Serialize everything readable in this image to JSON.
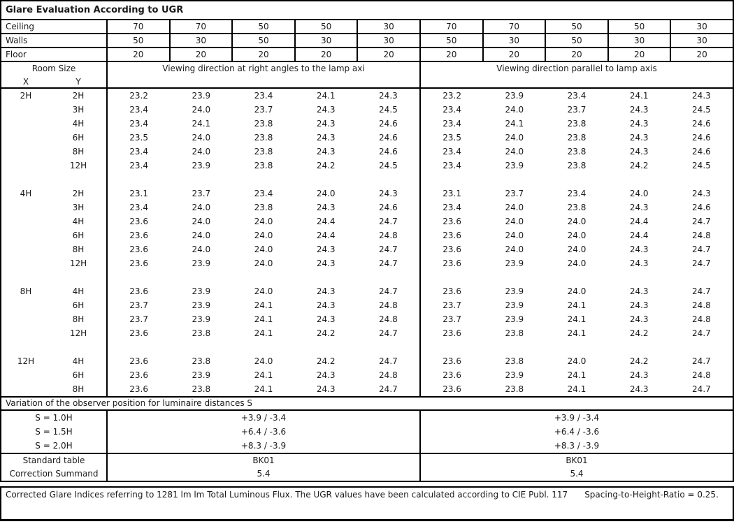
{
  "title": "Glare Evaluation According to UGR",
  "colors": {
    "background": "#ffffff",
    "text": "#1a1a1a",
    "border": "#000000"
  },
  "params": {
    "rows": [
      {
        "label": "Ceiling",
        "values": [
          "70",
          "70",
          "50",
          "50",
          "30",
          "70",
          "70",
          "50",
          "50",
          "30"
        ]
      },
      {
        "label": "Walls",
        "values": [
          "50",
          "30",
          "50",
          "30",
          "30",
          "50",
          "30",
          "50",
          "30",
          "30"
        ]
      },
      {
        "label": "Floor",
        "values": [
          "20",
          "20",
          "20",
          "20",
          "20",
          "20",
          "20",
          "20",
          "20",
          "20"
        ]
      }
    ]
  },
  "header": {
    "room_size": "Room Size",
    "x": "X",
    "y": "Y",
    "right_angle": "Viewing direction at right angles to the lamp axi",
    "parallel": "Viewing direction parallel to lamp axis"
  },
  "blocks": [
    {
      "x": "2H",
      "rows": [
        {
          "y": "2H",
          "right_angle": [
            "23.2",
            "23.9",
            "23.4",
            "24.1",
            "24.3"
          ],
          "parallel": [
            "23.2",
            "23.9",
            "23.4",
            "24.1",
            "24.3"
          ]
        },
        {
          "y": "3H",
          "right_angle": [
            "23.4",
            "24.0",
            "23.7",
            "24.3",
            "24.5"
          ],
          "parallel": [
            "23.4",
            "24.0",
            "23.7",
            "24.3",
            "24.5"
          ]
        },
        {
          "y": "4H",
          "right_angle": [
            "23.4",
            "24.1",
            "23.8",
            "24.3",
            "24.6"
          ],
          "parallel": [
            "23.4",
            "24.1",
            "23.8",
            "24.3",
            "24.6"
          ]
        },
        {
          "y": "6H",
          "right_angle": [
            "23.5",
            "24.0",
            "23.8",
            "24.3",
            "24.6"
          ],
          "parallel": [
            "23.5",
            "24.0",
            "23.8",
            "24.3",
            "24.6"
          ]
        },
        {
          "y": "8H",
          "right_angle": [
            "23.4",
            "24.0",
            "23.8",
            "24.3",
            "24.6"
          ],
          "parallel": [
            "23.4",
            "24.0",
            "23.8",
            "24.3",
            "24.6"
          ]
        },
        {
          "y": "12H",
          "right_angle": [
            "23.4",
            "23.9",
            "23.8",
            "24.2",
            "24.5"
          ],
          "parallel": [
            "23.4",
            "23.9",
            "23.8",
            "24.2",
            "24.5"
          ]
        }
      ]
    },
    {
      "x": "4H",
      "rows": [
        {
          "y": "2H",
          "right_angle": [
            "23.1",
            "23.7",
            "23.4",
            "24.0",
            "24.3"
          ],
          "parallel": [
            "23.1",
            "23.7",
            "23.4",
            "24.0",
            "24.3"
          ]
        },
        {
          "y": "3H",
          "right_angle": [
            "23.4",
            "24.0",
            "23.8",
            "24.3",
            "24.6"
          ],
          "parallel": [
            "23.4",
            "24.0",
            "23.8",
            "24.3",
            "24.6"
          ]
        },
        {
          "y": "4H",
          "right_angle": [
            "23.6",
            "24.0",
            "24.0",
            "24.4",
            "24.7"
          ],
          "parallel": [
            "23.6",
            "24.0",
            "24.0",
            "24.4",
            "24.7"
          ]
        },
        {
          "y": "6H",
          "right_angle": [
            "23.6",
            "24.0",
            "24.0",
            "24.4",
            "24.8"
          ],
          "parallel": [
            "23.6",
            "24.0",
            "24.0",
            "24.4",
            "24.8"
          ]
        },
        {
          "y": "8H",
          "right_angle": [
            "23.6",
            "24.0",
            "24.0",
            "24.3",
            "24.7"
          ],
          "parallel": [
            "23.6",
            "24.0",
            "24.0",
            "24.3",
            "24.7"
          ]
        },
        {
          "y": "12H",
          "right_angle": [
            "23.6",
            "23.9",
            "24.0",
            "24.3",
            "24.7"
          ],
          "parallel": [
            "23.6",
            "23.9",
            "24.0",
            "24.3",
            "24.7"
          ]
        }
      ]
    },
    {
      "x": "8H",
      "rows": [
        {
          "y": "4H",
          "right_angle": [
            "23.6",
            "23.9",
            "24.0",
            "24.3",
            "24.7"
          ],
          "parallel": [
            "23.6",
            "23.9",
            "24.0",
            "24.3",
            "24.7"
          ]
        },
        {
          "y": "6H",
          "right_angle": [
            "23.7",
            "23.9",
            "24.1",
            "24.3",
            "24.8"
          ],
          "parallel": [
            "23.7",
            "23.9",
            "24.1",
            "24.3",
            "24.8"
          ]
        },
        {
          "y": "8H",
          "right_angle": [
            "23.7",
            "23.9",
            "24.1",
            "24.3",
            "24.8"
          ],
          "parallel": [
            "23.7",
            "23.9",
            "24.1",
            "24.3",
            "24.8"
          ]
        },
        {
          "y": "12H",
          "right_angle": [
            "23.6",
            "23.8",
            "24.1",
            "24.2",
            "24.7"
          ],
          "parallel": [
            "23.6",
            "23.8",
            "24.1",
            "24.2",
            "24.7"
          ]
        }
      ]
    },
    {
      "x": "12H",
      "rows": [
        {
          "y": "4H",
          "right_angle": [
            "23.6",
            "23.8",
            "24.0",
            "24.2",
            "24.7"
          ],
          "parallel": [
            "23.6",
            "23.8",
            "24.0",
            "24.2",
            "24.7"
          ]
        },
        {
          "y": "6H",
          "right_angle": [
            "23.6",
            "23.9",
            "24.1",
            "24.3",
            "24.8"
          ],
          "parallel": [
            "23.6",
            "23.9",
            "24.1",
            "24.3",
            "24.8"
          ]
        },
        {
          "y": "8H",
          "right_angle": [
            "23.6",
            "23.8",
            "24.1",
            "24.3",
            "24.7"
          ],
          "parallel": [
            "23.6",
            "23.8",
            "24.1",
            "24.3",
            "24.7"
          ]
        }
      ]
    }
  ],
  "variation": {
    "heading": "Variation of the observer position for luminaire distances S",
    "rows": [
      {
        "label": "S = 1.0H",
        "right_angle": "+3.9 / -3.4",
        "parallel": "+3.9 / -3.4"
      },
      {
        "label": "S = 1.5H",
        "right_angle": "+6.4 / -3.6",
        "parallel": "+6.4 / -3.6"
      },
      {
        "label": "S = 2.0H",
        "right_angle": "+8.3 / -3.9",
        "parallel": "+8.3 / -3.9"
      }
    ]
  },
  "summary": {
    "rows": [
      {
        "label": "Standard table",
        "right_angle": "BK01",
        "parallel": "BK01"
      },
      {
        "label": "Correction Summand",
        "right_angle": "5.4",
        "parallel": "5.4"
      }
    ]
  },
  "footer": {
    "note": "Corrected Glare Indices referring to 1281 lm lm Total Luminous Flux. The UGR values have been calculated according to CIE Publ. 117",
    "ratio": "Spacing-to-Height-Ratio = 0.25."
  }
}
